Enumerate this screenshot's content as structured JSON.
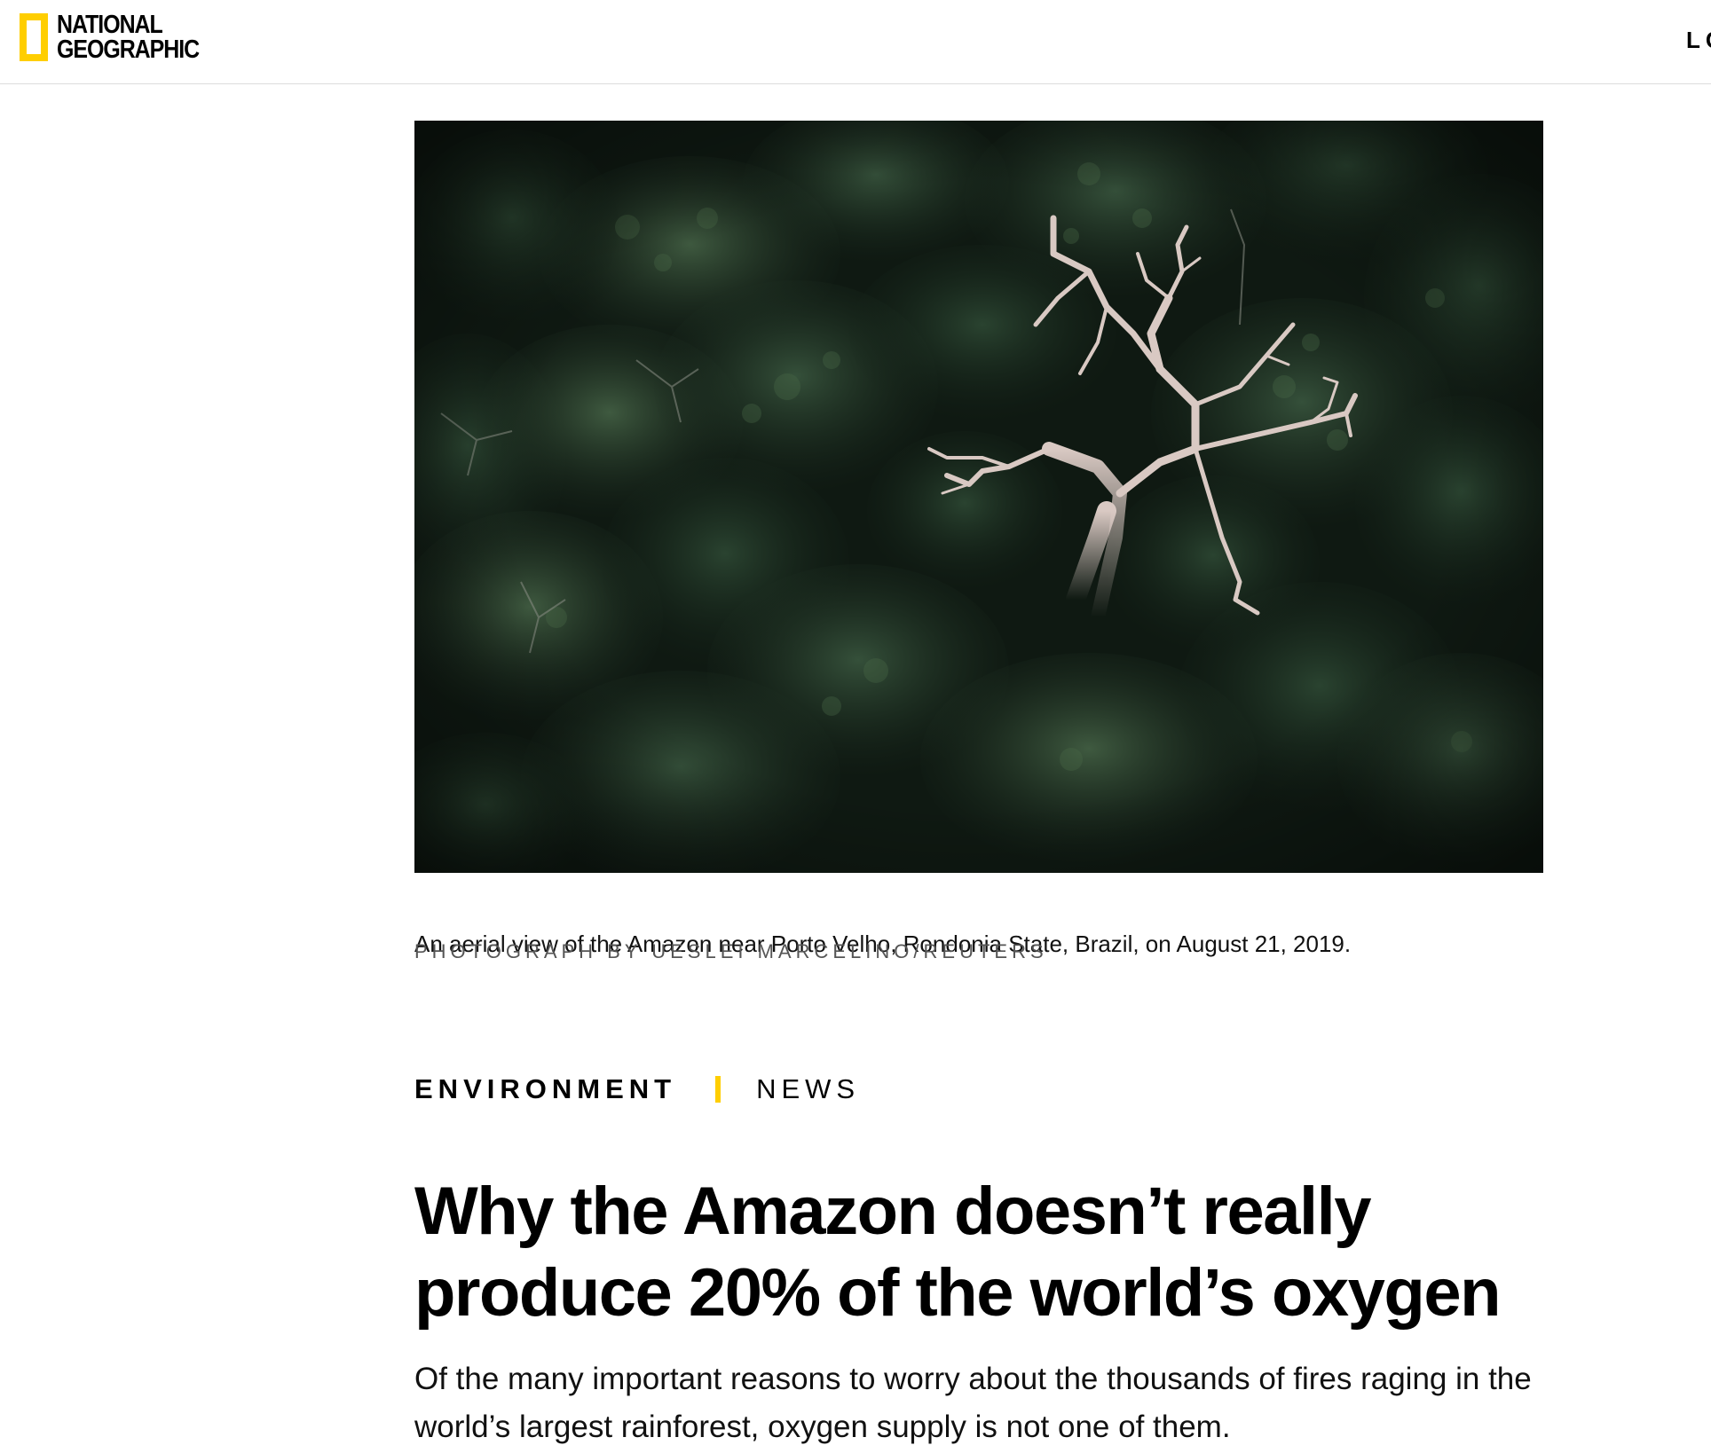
{
  "header": {
    "logo_line1": "NATIONAL",
    "logo_line2": "GEOGRAPHIC",
    "login_label": "LO"
  },
  "article": {
    "photo": {
      "subject": "aerial view of Amazon rainforest canopy with a bare white dead tree",
      "caption": "An aerial view of the Amazon near Porto Velho, Rondonia State, Brazil, on August 21, 2019.",
      "credit": "PHOTOGRAPH BY UESLEI MARCELINO/REUTERS"
    },
    "kicker": {
      "primary": "ENVIRONMENT",
      "secondary": "NEWS"
    },
    "headline": "Why the Amazon doesn’t really produce 20% of the world’s oxygen",
    "dek": "Of the many important reasons to worry about the thousands of fires raging in the world’s largest rainforest, oxygen supply is not one of them."
  },
  "colors": {
    "brand_yellow": "#FFCE00",
    "text": "#000000",
    "credit_gray": "#555555",
    "header_border": "#DCDCDC",
    "forest_dark": "#0E1611"
  }
}
